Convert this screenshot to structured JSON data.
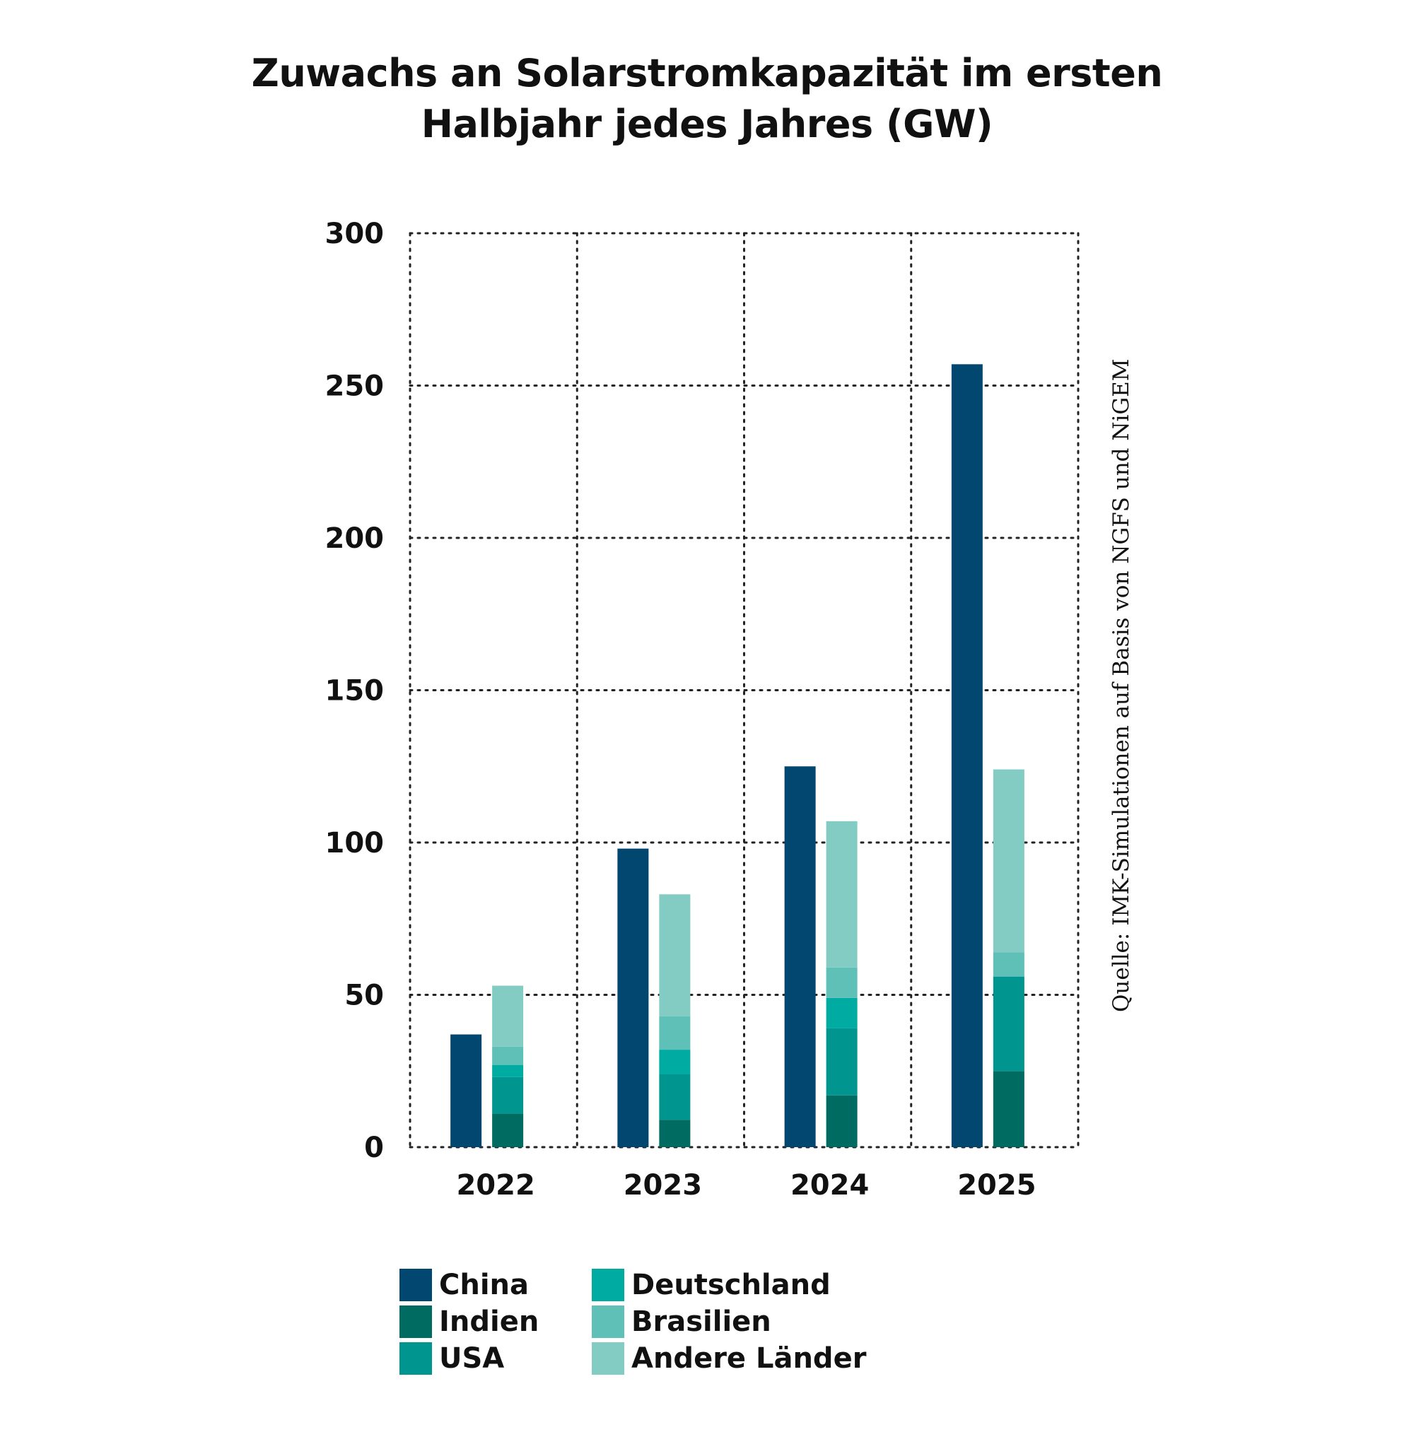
{
  "title": {
    "line1": "Zuwachs an Solarstromkapazität im ersten",
    "line2": "Halbjahr jedes Jahres (GW)"
  },
  "source": "Quelle: IMK-Simulationen auf Basis von NGFS und NiGEM",
  "colors": {
    "China": "#02476f",
    "Indien": "#006b61",
    "USA": "#00968f",
    "Deutschland": "#00aba1",
    "Brasilien": "#5fc0b8",
    "Andere Länder": "#83ccc4",
    "grid": "#222222",
    "text": "#111111"
  },
  "chart_data": {
    "type": "bar",
    "title": "Zuwachs an Solarstromkapazität im ersten Halbjahr jedes Jahres (GW)",
    "categories": [
      "2022",
      "2023",
      "2024",
      "2025"
    ],
    "ylim": [
      0,
      300
    ],
    "yticks": [
      0,
      50,
      100,
      150,
      200,
      250,
      300
    ],
    "grid": true,
    "legend_position": "bottom",
    "china": {
      "name": "China",
      "values": [
        37,
        98,
        125,
        257
      ]
    },
    "stack": [
      {
        "name": "Indien",
        "values": [
          11,
          9,
          17,
          25
        ]
      },
      {
        "name": "USA",
        "values": [
          12,
          15,
          22,
          31
        ]
      },
      {
        "name": "Deutschland",
        "values": [
          4,
          8,
          10,
          0
        ]
      },
      {
        "name": "Brasilien",
        "values": [
          6,
          11,
          10,
          8
        ]
      },
      {
        "name": "Andere Länder",
        "values": [
          20,
          40,
          48,
          60
        ]
      }
    ],
    "stack_totals": [
      53,
      83,
      107,
      124
    ]
  },
  "legend": {
    "col1": [
      "China",
      "Indien",
      "USA"
    ],
    "col2": [
      "Deutschland",
      "Brasilien",
      "Andere Länder"
    ]
  }
}
